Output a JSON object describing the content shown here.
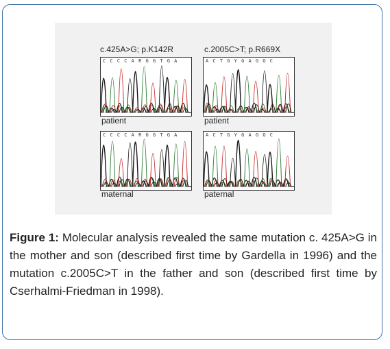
{
  "figure": {
    "mutation_left": "c.425A>G; p.K142R",
    "mutation_right": "c.2005C>T; p.R669X",
    "panels": [
      {
        "label": "patient",
        "sequence": "CCCCARGGTGA"
      },
      {
        "label": "patient",
        "sequence": "ACTGYGAGGC"
      },
      {
        "label": "maternal",
        "sequence": "CCCCARGGTGA"
      },
      {
        "label": "paternal",
        "sequence": "ACTGYGAGGC"
      }
    ]
  },
  "caption": {
    "label": "Figure 1:",
    "text": " Molecular analysis revealed the same mutation c. 425A>G in the mother and son (described first time by Gardella in 1996) and the mutation c.2005C>T in the father and son (described first time by Cserhalmi-Friedman in 1998)."
  }
}
